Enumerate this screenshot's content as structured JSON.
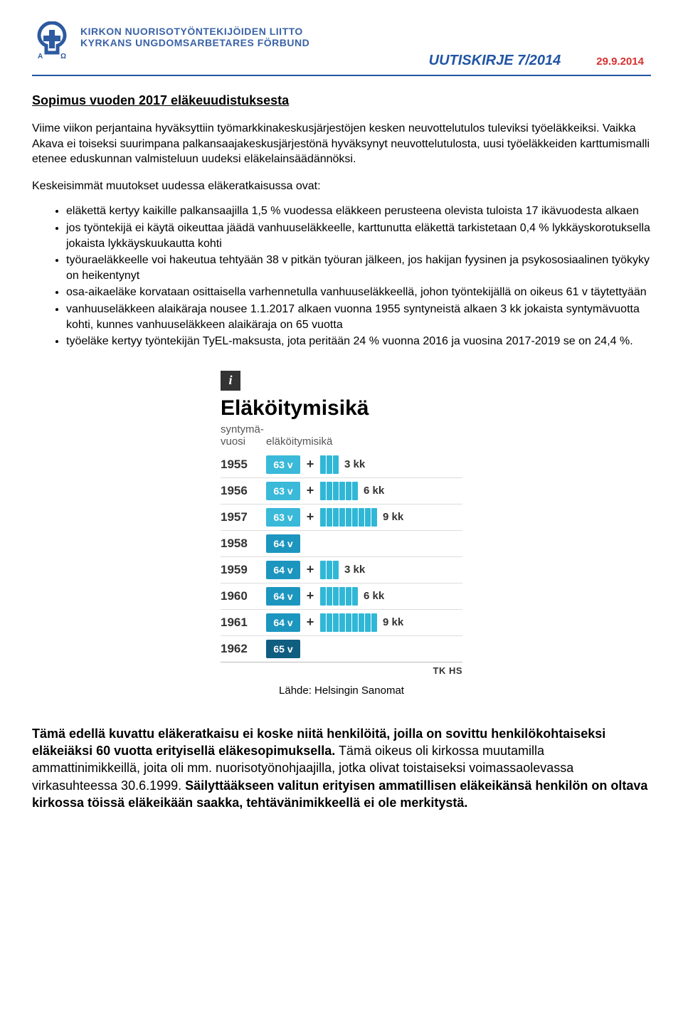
{
  "header": {
    "org_line1": "KIRKON NUORISOTYÖNTEKIJÖIDEN LIITTO",
    "org_line2": "KYRKANS UNGDOMSARBETARES FÖRBUND",
    "logo_color": "#2d5aa0",
    "title": "UUTISKIRJE  7/2014",
    "date": "29.9.2014",
    "line_color": "#2255a5",
    "date_color": "#d93030"
  },
  "section": {
    "heading": "Sopimus vuoden 2017 eläkeuudistuksesta",
    "para1": "Viime viikon perjantaina hyväksyttiin työmarkkinakeskusjärjestöjen kesken neuvottelutulos tuleviksi työeläkkeiksi. Vaikka Akava ei toiseksi suurimpana palkansaajakeskusjärjestönä hyväksynyt neuvottelutulosta, uusi työeläkkeiden karttumismalli etenee eduskunnan valmisteluun uudeksi eläkelainsäädännöksi.",
    "para2": "Keskeisimmät muutokset uudessa eläkeratkaisussa ovat:",
    "bullets": [
      "eläkettä kertyy kaikille palkansaajilla 1,5 % vuodessa eläkkeen perusteena olevista tuloista 17 ikävuodesta alkaen",
      "jos työntekijä ei käytä oikeuttaa jäädä vanhuuseläkkeelle, karttunutta eläkettä tarkistetaan 0,4 % lykkäyskorotuksella jokaista lykkäyskuukautta kohti",
      "työuraeläkkeelle voi hakeutua tehtyään 38 v pitkän työuran jälkeen, jos hakijan fyysinen ja psykososiaalinen työkyky on heikentynyt",
      "osa-aikaeläke korvataan osittaisella varhennetulla vanhuuseläkkeellä, johon työntekijällä on oikeus 61 v täytettyään",
      "vanhuuseläkkeen alaikäraja nousee 1.1.2017 alkaen vuonna 1955 syntyneistä alkaen 3 kk jokaista syntymävuotta kohti, kunnes vanhuuseläkkeen alaikäraja on 65 vuotta",
      "työeläke kertyy työntekijän TyEL-maksusta, jota peritään 24 % vuonna 2016 ja vuosina 2017-2019 se on 24,4 %."
    ]
  },
  "graphic": {
    "title": "Eläköitymisikä",
    "subhead1a": "syntymä-",
    "subhead1b": "vuosi",
    "subhead2": "eläköitymisikä",
    "bar_color": "#31b7d6",
    "badge_colors": {
      "light": "#3ab9d9",
      "med": "#1d96bf",
      "dark": "#0f5e80"
    },
    "rows": [
      {
        "year": "1955",
        "age": "63 v",
        "shade": "light",
        "months": 3,
        "extra": "3 kk"
      },
      {
        "year": "1956",
        "age": "63 v",
        "shade": "light",
        "months": 6,
        "extra": "6 kk"
      },
      {
        "year": "1957",
        "age": "63 v",
        "shade": "light",
        "months": 9,
        "extra": "9 kk"
      },
      {
        "year": "1958",
        "age": "64 v",
        "shade": "med",
        "months": 0,
        "extra": ""
      },
      {
        "year": "1959",
        "age": "64 v",
        "shade": "med",
        "months": 3,
        "extra": "3 kk"
      },
      {
        "year": "1960",
        "age": "64 v",
        "shade": "med",
        "months": 6,
        "extra": "6 kk"
      },
      {
        "year": "1961",
        "age": "64 v",
        "shade": "med",
        "months": 9,
        "extra": "9 kk"
      },
      {
        "year": "1962",
        "age": "65 v",
        "shade": "dark",
        "months": 0,
        "extra": ""
      }
    ],
    "credit": "TK HS",
    "source": "Lähde: Helsingin Sanomat"
  },
  "closing": {
    "bold_part": "Tämä edellä kuvattu eläkeratkaisu ei koske niitä henkilöitä, joilla on sovittu henkilökohtaiseksi eläkeiäksi 60 vuotta erityisellä eläkesopimuksella.",
    "rest1": " Tämä oikeus oli kirkossa muutamilla ammattinimikkeillä, joita oli mm. nuorisotyönohjaajilla, jotka olivat toistaiseksi voimassaolevassa virkasuhteessa 30.6.1999. ",
    "bold2": "Säilyttääkseen valitun erityisen ammatillisen eläkeikänsä henkilön on oltava kirkossa töissä eläkeikään saakka, tehtävänimikkeellä ei ole merkitystä."
  }
}
